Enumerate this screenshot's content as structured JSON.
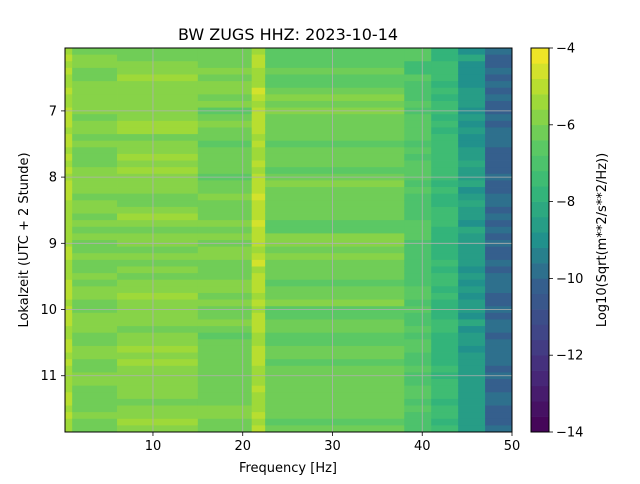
{
  "chart_data": {
    "type": "heatmap",
    "title": "BW ZUGS  HHZ: 2023-10-14",
    "xlabel": "Frequency [Hz]",
    "ylabel": "Lokalzeit (UTC + 2 Stunde)",
    "colorbar_label": "Log10(Sqrt(m**2/s**2/Hz))",
    "xlim": [
      0.2,
      50
    ],
    "ylim": [
      11.85,
      6.05
    ],
    "x_ticks": [
      10,
      20,
      30,
      40,
      50
    ],
    "x_tick_labels": [
      "10",
      "20",
      "30",
      "40",
      "50"
    ],
    "y_ticks": [
      7,
      8,
      9,
      10,
      11
    ],
    "y_tick_labels": [
      "7",
      "8",
      "9",
      "10",
      "11"
    ],
    "colorbar_range": [
      -14,
      -4
    ],
    "colorbar_ticks": [
      -4,
      -6,
      -8,
      -10,
      -12,
      -14
    ],
    "colorbar_tick_labels": [
      "−4",
      "−6",
      "−8",
      "−10",
      "−12",
      "−14"
    ],
    "colormap": "viridis",
    "colorbar_levels": 25,
    "grid": true,
    "spectral_features": {
      "frequency_bands": [
        {
          "f_hz": [
            0.2,
            1.0
          ],
          "value": -5.2
        },
        {
          "f_hz": [
            1.0,
            6.0
          ],
          "value": -6.0
        },
        {
          "f_hz": [
            6.0,
            15.0
          ],
          "value": -5.8
        },
        {
          "f_hz": [
            15.0,
            21.0
          ],
          "value": -6.1
        },
        {
          "f_hz": [
            21.0,
            22.5
          ],
          "value": -5.1
        },
        {
          "f_hz": [
            22.5,
            38.0
          ],
          "value": -6.3
        },
        {
          "f_hz": [
            38.0,
            41.0
          ],
          "value": -6.9
        },
        {
          "f_hz": [
            41.0,
            44.0
          ],
          "value": -7.6
        },
        {
          "f_hz": [
            44.0,
            47.0
          ],
          "value": -8.7
        },
        {
          "f_hz": [
            47.0,
            50.0
          ],
          "value": -10.0
        }
      ]
    }
  }
}
